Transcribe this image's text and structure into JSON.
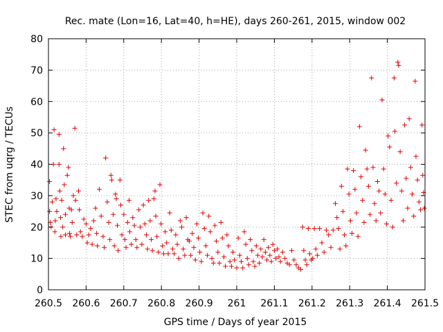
{
  "chart_data": {
    "type": "scatter",
    "title": "Rec. mate (Lon=16, Lat=40, h=HE), days 260-261, 2015, window 002",
    "xlabel": "GPS time / Days of year 2015",
    "ylabel": "STEC from uqrg / TECUs",
    "xlim": [
      260.5,
      261.5
    ],
    "ylim": [
      0,
      80
    ],
    "xticks": [
      260.5,
      260.6,
      260.7,
      260.8,
      260.9,
      261.0,
      261.1,
      261.2,
      261.3,
      261.4,
      261.5
    ],
    "xtick_labels": [
      "260.5",
      "260.6",
      "260.7",
      "260.8",
      "260.9",
      "261",
      "261.1",
      "261.2",
      "261.3",
      "261.4",
      "261.5"
    ],
    "yticks": [
      0,
      10,
      20,
      30,
      40,
      50,
      60,
      70,
      80
    ],
    "ytick_labels": [
      "0",
      "10",
      "20",
      "30",
      "40",
      "50",
      "60",
      "70",
      "80"
    ],
    "grid": true,
    "marker": "+",
    "marker_color": "#e00000",
    "series": [
      {
        "name": "STEC",
        "points": [
          [
            260.503,
            34.5
          ],
          [
            260.503,
            25.0
          ],
          [
            260.505,
            21.5
          ],
          [
            260.507,
            20.0
          ],
          [
            260.51,
            28.0
          ],
          [
            260.513,
            40.0
          ],
          [
            260.515,
            51.0
          ],
          [
            260.517,
            18.5
          ],
          [
            260.518,
            22.0
          ],
          [
            260.52,
            29.0
          ],
          [
            260.522,
            25.0
          ],
          [
            260.528,
            49.5
          ],
          [
            260.528,
            40.0
          ],
          [
            260.53,
            31.5
          ],
          [
            260.532,
            23.0
          ],
          [
            260.533,
            17.0
          ],
          [
            260.535,
            28.5
          ],
          [
            260.538,
            20.0
          ],
          [
            260.54,
            45.0
          ],
          [
            260.542,
            33.5
          ],
          [
            260.545,
            24.0
          ],
          [
            260.545,
            17.5
          ],
          [
            260.55,
            36.5
          ],
          [
            260.553,
            39.0
          ],
          [
            260.555,
            26.0
          ],
          [
            260.556,
            18.0
          ],
          [
            260.558,
            17.0
          ],
          [
            260.561,
            25.5
          ],
          [
            260.563,
            21.5
          ],
          [
            260.566,
            30.0
          ],
          [
            260.57,
            51.5
          ],
          [
            260.572,
            28.5
          ],
          [
            260.575,
            17.5
          ],
          [
            260.58,
            31.5
          ],
          [
            260.582,
            25.5
          ],
          [
            260.585,
            18.5
          ],
          [
            260.59,
            17.0
          ],
          [
            260.594,
            22.5
          ],
          [
            260.6,
            21.0
          ],
          [
            260.603,
            15.0
          ],
          [
            260.607,
            17.5
          ],
          [
            260.612,
            19.5
          ],
          [
            260.616,
            14.5
          ],
          [
            260.62,
            22.0
          ],
          [
            260.625,
            26.0
          ],
          [
            260.628,
            18.0
          ],
          [
            260.63,
            14.0
          ],
          [
            260.635,
            32.0
          ],
          [
            260.64,
            23.5
          ],
          [
            260.645,
            17.0
          ],
          [
            260.648,
            13.5
          ],
          [
            260.652,
            42.0
          ],
          [
            260.656,
            28.0
          ],
          [
            260.66,
            21.5
          ],
          [
            260.663,
            16.0
          ],
          [
            260.666,
            36.5
          ],
          [
            260.668,
            35.0
          ],
          [
            260.672,
            24.0
          ],
          [
            260.675,
            14.0
          ],
          [
            260.678,
            30.5
          ],
          [
            260.68,
            29.0
          ],
          [
            260.683,
            20.5
          ],
          [
            260.685,
            12.5
          ],
          [
            260.69,
            35.0
          ],
          [
            260.692,
            27.0
          ],
          [
            260.695,
            17.5
          ],
          [
            260.7,
            24.0
          ],
          [
            260.703,
            16.0
          ],
          [
            260.706,
            13.5
          ],
          [
            260.71,
            21.5
          ],
          [
            260.714,
            28.5
          ],
          [
            260.716,
            18.5
          ],
          [
            260.72,
            14.5
          ],
          [
            260.724,
            23.0
          ],
          [
            260.728,
            20.5
          ],
          [
            260.732,
            16.0
          ],
          [
            260.735,
            13.5
          ],
          [
            260.74,
            25.5
          ],
          [
            260.744,
            20.0
          ],
          [
            260.748,
            14.5
          ],
          [
            260.752,
            27.0
          ],
          [
            260.756,
            21.0
          ],
          [
            260.76,
            17.5
          ],
          [
            260.763,
            13.0
          ],
          [
            260.766,
            28.5
          ],
          [
            260.77,
            22.0
          ],
          [
            260.773,
            16.0
          ],
          [
            260.776,
            12.5
          ],
          [
            260.78,
            29.0
          ],
          [
            260.783,
            31.5
          ],
          [
            260.785,
            23.5
          ],
          [
            260.788,
            17.0
          ],
          [
            260.792,
            12.0
          ],
          [
            260.796,
            33.5
          ],
          [
            260.799,
            21.0
          ],
          [
            260.803,
            14.0
          ],
          [
            260.806,
            11.5
          ],
          [
            260.81,
            18.5
          ],
          [
            260.814,
            15.0
          ],
          [
            260.818,
            11.5
          ],
          [
            260.822,
            24.5
          ],
          [
            260.826,
            19.0
          ],
          [
            260.83,
            13.0
          ],
          [
            260.834,
            11.5
          ],
          [
            260.838,
            17.5
          ],
          [
            260.842,
            14.5
          ],
          [
            260.846,
            10.0
          ],
          [
            260.85,
            22.0
          ],
          [
            260.854,
            20.0
          ],
          [
            260.858,
            13.0
          ],
          [
            260.862,
            11.0
          ],
          [
            260.866,
            23.0
          ],
          [
            260.87,
            16.0
          ],
          [
            260.874,
            15.5
          ],
          [
            260.878,
            11.0
          ],
          [
            260.882,
            18.0
          ],
          [
            260.886,
            13.5
          ],
          [
            260.89,
            9.5
          ],
          [
            260.894,
            21.0
          ],
          [
            260.898,
            16.5
          ],
          [
            260.902,
            12.0
          ],
          [
            260.906,
            9.0
          ],
          [
            260.91,
            24.5
          ],
          [
            260.914,
            19.5
          ],
          [
            260.918,
            14.0
          ],
          [
            260.922,
            11.0
          ],
          [
            260.926,
            23.5
          ],
          [
            260.93,
            18.5
          ],
          [
            260.934,
            10.0
          ],
          [
            260.938,
            8.5
          ],
          [
            260.942,
            20.5
          ],
          [
            260.946,
            15.5
          ],
          [
            260.95,
            12.0
          ],
          [
            260.954,
            8.5
          ],
          [
            260.958,
            21.5
          ],
          [
            260.962,
            16.5
          ],
          [
            260.966,
            10.5
          ],
          [
            260.97,
            7.5
          ],
          [
            260.974,
            17.5
          ],
          [
            260.978,
            14.0
          ],
          [
            260.982,
            9.0
          ],
          [
            260.986,
            7.5
          ],
          [
            260.99,
            12.0
          ],
          [
            260.994,
            9.5
          ],
          [
            261.0,
            7.0
          ],
          [
            261.004,
            16.5
          ],
          [
            261.008,
            11.0
          ],
          [
            261.012,
            9.0
          ],
          [
            261.016,
            7.0
          ],
          [
            261.02,
            18.5
          ],
          [
            261.024,
            14.5
          ],
          [
            261.028,
            10.0
          ],
          [
            261.032,
            8.0
          ],
          [
            261.036,
            16.0
          ],
          [
            261.04,
            12.5
          ],
          [
            261.044,
            9.0
          ],
          [
            261.048,
            7.5
          ],
          [
            261.052,
            14.0
          ],
          [
            261.056,
            11.0
          ],
          [
            261.06,
            8.5
          ],
          [
            261.064,
            13.0
          ],
          [
            261.068,
            10.5
          ],
          [
            261.072,
            16.0
          ],
          [
            261.076,
            12.0
          ],
          [
            261.08,
            9.5
          ],
          [
            261.084,
            13.5
          ],
          [
            261.088,
            11.0
          ],
          [
            261.092,
            9.0
          ],
          [
            261.096,
            14.5
          ],
          [
            261.1,
            12.5
          ],
          [
            261.104,
            10.0
          ],
          [
            261.108,
            13.0
          ],
          [
            261.112,
            10.5
          ],
          [
            261.116,
            9.0
          ],
          [
            261.122,
            12.0
          ],
          [
            261.128,
            10.0
          ],
          [
            261.134,
            8.5
          ],
          [
            261.14,
            8.0
          ],
          [
            261.146,
            12.5
          ],
          [
            261.152,
            9.5
          ],
          [
            261.158,
            8.0
          ],
          [
            261.164,
            7.0
          ],
          [
            261.17,
            6.5
          ],
          [
            261.175,
            20.0
          ],
          [
            261.178,
            12.5
          ],
          [
            261.182,
            9.5
          ],
          [
            261.186,
            8.0
          ],
          [
            261.19,
            19.5
          ],
          [
            261.194,
            11.5
          ],
          [
            261.198,
            9.5
          ],
          [
            261.202,
            10.0
          ],
          [
            261.206,
            19.5
          ],
          [
            261.21,
            13.0
          ],
          [
            261.214,
            11.0
          ],
          [
            261.22,
            19.5
          ],
          [
            261.226,
            15.0
          ],
          [
            261.232,
            12.0
          ],
          [
            261.238,
            19.0
          ],
          [
            261.244,
            17.5
          ],
          [
            261.25,
            13.5
          ],
          [
            261.256,
            19.0
          ],
          [
            261.262,
            27.5
          ],
          [
            261.266,
            23.0
          ],
          [
            261.27,
            19.5
          ],
          [
            261.274,
            13.0
          ],
          [
            261.278,
            33.0
          ],
          [
            261.282,
            25.0
          ],
          [
            261.286,
            17.5
          ],
          [
            261.29,
            14.0
          ],
          [
            261.294,
            38.5
          ],
          [
            261.298,
            30.5
          ],
          [
            261.302,
            22.0
          ],
          [
            261.306,
            18.0
          ],
          [
            261.31,
            38.0
          ],
          [
            261.314,
            32.0
          ],
          [
            261.318,
            24.5
          ],
          [
            261.322,
            17.0
          ],
          [
            261.326,
            52.0
          ],
          [
            261.33,
            36.0
          ],
          [
            261.334,
            28.5
          ],
          [
            261.338,
            21.5
          ],
          [
            261.342,
            44.5
          ],
          [
            261.346,
            38.5
          ],
          [
            261.35,
            33.0
          ],
          [
            261.354,
            24.0
          ],
          [
            261.358,
            67.5
          ],
          [
            261.362,
            39.0
          ],
          [
            261.366,
            27.5
          ],
          [
            261.37,
            22.0
          ],
          [
            261.374,
            34.5
          ],
          [
            261.378,
            31.5
          ],
          [
            261.382,
            24.5
          ],
          [
            261.386,
            60.5
          ],
          [
            261.39,
            38.5
          ],
          [
            261.394,
            30.5
          ],
          [
            261.398,
            21.0
          ],
          [
            261.402,
            49.0
          ],
          [
            261.406,
            45.5
          ],
          [
            261.41,
            28.5
          ],
          [
            261.414,
            20.0
          ],
          [
            261.418,
            67.5
          ],
          [
            261.42,
            50.5
          ],
          [
            261.424,
            34.0
          ],
          [
            261.428,
            72.5
          ],
          [
            261.43,
            71.5
          ],
          [
            261.434,
            44.0
          ],
          [
            261.438,
            31.5
          ],
          [
            261.442,
            22.0
          ],
          [
            261.446,
            52.5
          ],
          [
            261.45,
            35.5
          ],
          [
            261.454,
            26.0
          ],
          [
            261.458,
            54.5
          ],
          [
            261.462,
            39.0
          ],
          [
            261.466,
            30.5
          ],
          [
            261.47,
            23.5
          ],
          [
            261.474,
            66.5
          ],
          [
            261.476,
            42.5
          ],
          [
            261.48,
            35.0
          ],
          [
            261.484,
            28.0
          ],
          [
            261.488,
            25.5
          ],
          [
            261.492,
            52.5
          ],
          [
            261.494,
            36.5
          ],
          [
            261.496,
            31.0
          ],
          [
            261.498,
            26.0
          ]
        ]
      }
    ]
  }
}
